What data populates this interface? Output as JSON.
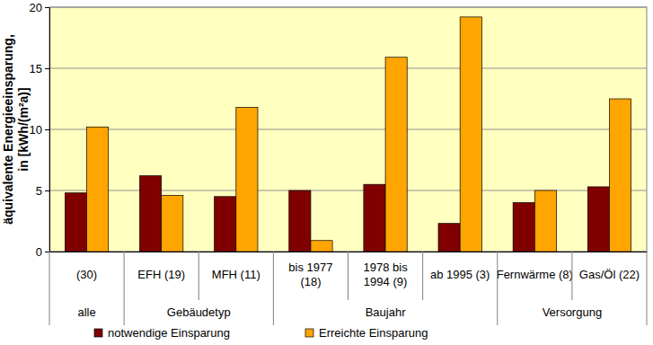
{
  "chart_data": {
    "type": "bar",
    "y_label": "äquivalente Energieeinsparung,\nin [kWh/(m²a)]",
    "categories": [
      "(30)",
      "EFH (19)",
      "MFH (11)",
      "bis 1977\n(18)",
      "1978 bis\n1994 (9)",
      "ab 1995 (3)",
      "Fernwärme (8)",
      "Gas/Öl (22)"
    ],
    "groups": [
      {
        "label": "alle",
        "span": 1
      },
      {
        "label": "Gebäudetyp",
        "span": 2
      },
      {
        "label": "Baujahr",
        "span": 3
      },
      {
        "label": "Versorgung",
        "span": 2
      }
    ],
    "series": [
      {
        "name": "notwendige Einsparung",
        "color": "#800000",
        "values": [
          4.8,
          6.2,
          4.5,
          5.0,
          5.5,
          2.3,
          4.0,
          5.3
        ]
      },
      {
        "name": "Erreichte Einsparung",
        "color": "#ffa500",
        "values": [
          10.2,
          4.6,
          11.8,
          0.9,
          15.9,
          19.2,
          5.0,
          12.5
        ]
      }
    ],
    "ylim": [
      0,
      20
    ],
    "yticks": [
      0,
      5,
      10,
      15,
      20
    ],
    "grid": true,
    "legend": "bottom"
  }
}
